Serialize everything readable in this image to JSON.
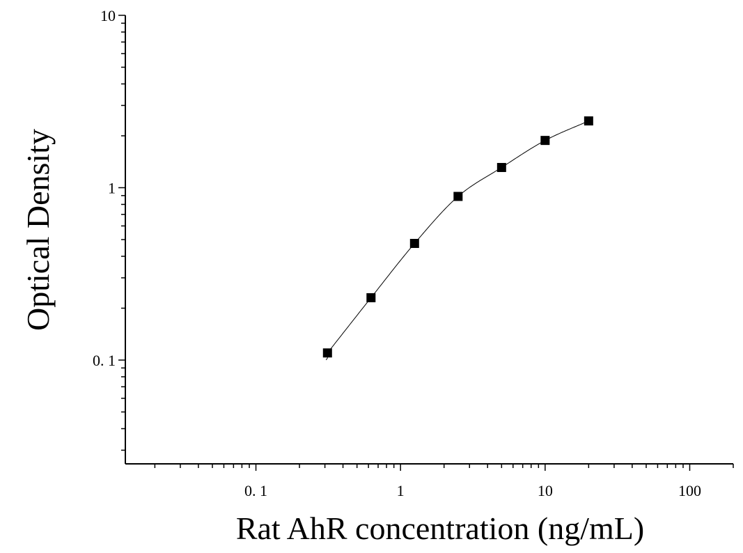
{
  "chart_data": {
    "type": "scatter",
    "title": "",
    "xlabel": "Rat AhR concentration (ng/mL)",
    "ylabel": "Optical Density",
    "x_scale": "log",
    "y_scale": "log",
    "xlim": [
      0.0125,
      200
    ],
    "ylim": [
      0.025,
      10
    ],
    "x_ticks": [
      {
        "value": 0.1,
        "label": "0. 1"
      },
      {
        "value": 1,
        "label": "1"
      },
      {
        "value": 10,
        "label": "10"
      },
      {
        "value": 100,
        "label": "100"
      }
    ],
    "y_ticks": [
      {
        "value": 0.1,
        "label": "0. 1"
      },
      {
        "value": 1,
        "label": "1"
      },
      {
        "value": 10,
        "label": "10"
      }
    ],
    "grid": false,
    "legend": "none",
    "marker": "square",
    "marker_color": "#000000",
    "line_color": "#000000",
    "series": [
      {
        "x": [
          0.3125,
          0.625,
          1.25,
          2.5,
          5,
          10,
          20
        ],
        "y": [
          0.11,
          0.23,
          0.475,
          0.89,
          1.31,
          1.88,
          2.44
        ]
      }
    ]
  }
}
